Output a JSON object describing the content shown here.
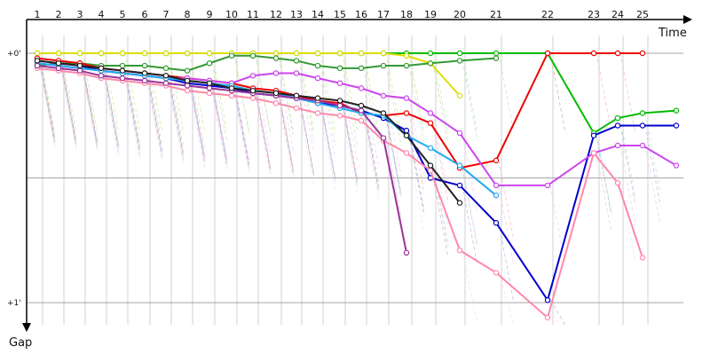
{
  "chart_data": {
    "type": "line",
    "xlabel": "Time",
    "ylabel": "Gap",
    "laps": [
      "1",
      "2",
      "3",
      "4",
      "5",
      "6",
      "7",
      "8",
      "9",
      "10",
      "11",
      "12",
      "13",
      "14",
      "15",
      "16",
      "17",
      "18",
      "19",
      "20",
      "21",
      "22",
      "23",
      "24",
      "25"
    ],
    "y_ticks": [
      {
        "value": 0,
        "label": "+0'"
      },
      {
        "value": 1,
        "label": "+1'"
      }
    ],
    "ylim": [
      0,
      1.1
    ],
    "grid": true,
    "series": [
      {
        "color": "#00bb00",
        "x": [
          1,
          2,
          3,
          4,
          5,
          6,
          7,
          8,
          9,
          10,
          11,
          12,
          13,
          14,
          15,
          16,
          17,
          18,
          19,
          20,
          21,
          22,
          23,
          24,
          25,
          26
        ],
        "y": [
          0.0,
          0.0,
          0.0,
          0.0,
          0.0,
          0.0,
          0.0,
          0.0,
          0.0,
          0.0,
          0.0,
          0.0,
          0.0,
          0.0,
          0.0,
          0.0,
          0.0,
          0.0,
          0.0,
          0.0,
          0.0,
          0.0,
          0.32,
          0.26,
          0.24,
          0.23
        ]
      },
      {
        "color": "#dddd00",
        "x": [
          1,
          2,
          3,
          4,
          5,
          6,
          7,
          8,
          9,
          10,
          11,
          12,
          13,
          14,
          15,
          16,
          17,
          18,
          19,
          20
        ],
        "y": [
          0.0,
          0.0,
          0.0,
          0.0,
          0.0,
          0.0,
          0.0,
          0.0,
          0.0,
          0.0,
          0.0,
          0.0,
          0.0,
          0.0,
          0.0,
          0.0,
          0.0,
          0.01,
          0.04,
          0.17
        ]
      },
      {
        "color": "#339933",
        "x": [
          1,
          2,
          3,
          4,
          5,
          6,
          7,
          8,
          9,
          10,
          11,
          12,
          13,
          14,
          15,
          16,
          17,
          18,
          19,
          20,
          21
        ],
        "y": [
          0.05,
          0.04,
          0.04,
          0.05,
          0.05,
          0.05,
          0.06,
          0.07,
          0.04,
          0.01,
          0.01,
          0.02,
          0.03,
          0.05,
          0.06,
          0.06,
          0.05,
          0.05,
          0.04,
          0.03,
          0.02
        ]
      },
      {
        "color": "#ee0000",
        "x": [
          1,
          2,
          3,
          4,
          5,
          6,
          7,
          8,
          9,
          10,
          11,
          12,
          13,
          14,
          15,
          16,
          17,
          18,
          19,
          20,
          21,
          22,
          23,
          24,
          25
        ],
        "y": [
          0.02,
          0.03,
          0.04,
          0.06,
          0.07,
          0.08,
          0.09,
          0.1,
          0.11,
          0.12,
          0.14,
          0.15,
          0.17,
          0.19,
          0.2,
          0.24,
          0.25,
          0.24,
          0.28,
          0.46,
          0.43,
          0.0,
          0.0,
          0.0,
          0.0
        ]
      },
      {
        "color": "#0000cc",
        "x": [
          1,
          2,
          3,
          4,
          5,
          6,
          7,
          8,
          9,
          10,
          11,
          12,
          13,
          14,
          15,
          16,
          17,
          18,
          19,
          20,
          21,
          22,
          23,
          24,
          25,
          26
        ],
        "y": [
          0.03,
          0.04,
          0.05,
          0.07,
          0.08,
          0.09,
          0.1,
          0.12,
          0.13,
          0.14,
          0.16,
          0.17,
          0.18,
          0.2,
          0.21,
          0.23,
          0.26,
          0.31,
          0.5,
          0.53,
          0.68,
          0.99,
          0.33,
          0.29,
          0.29,
          0.29
        ]
      },
      {
        "color": "#cc44ee",
        "x": [
          1,
          2,
          3,
          4,
          5,
          6,
          7,
          8,
          9,
          10,
          11,
          12,
          13,
          14,
          15,
          16,
          17,
          18,
          19,
          20,
          21,
          22,
          23,
          24,
          25,
          26
        ],
        "y": [
          0.04,
          0.05,
          0.06,
          0.07,
          0.08,
          0.09,
          0.1,
          0.1,
          0.11,
          0.12,
          0.09,
          0.08,
          0.08,
          0.1,
          0.12,
          0.14,
          0.17,
          0.18,
          0.24,
          0.32,
          0.53,
          0.53,
          0.4,
          0.37,
          0.37,
          0.45
        ]
      },
      {
        "color": "#ff88aa",
        "x": [
          1,
          2,
          3,
          4,
          5,
          6,
          7,
          8,
          9,
          10,
          11,
          12,
          13,
          14,
          15,
          16,
          17,
          18,
          19,
          20,
          21,
          22,
          23,
          24,
          25
        ],
        "y": [
          0.06,
          0.07,
          0.08,
          0.1,
          0.11,
          0.12,
          0.13,
          0.15,
          0.16,
          0.17,
          0.18,
          0.2,
          0.22,
          0.24,
          0.25,
          0.27,
          0.35,
          0.4,
          0.47,
          0.79,
          0.88,
          1.06,
          0.4,
          0.52,
          0.82
        ]
      },
      {
        "color": "#22aaee",
        "x": [
          1,
          2,
          3,
          4,
          5,
          6,
          7,
          8,
          9,
          10,
          11,
          12,
          13,
          14,
          15,
          16,
          17,
          18,
          19,
          20,
          21
        ],
        "y": [
          0.04,
          0.05,
          0.06,
          0.07,
          0.08,
          0.09,
          0.1,
          0.11,
          0.12,
          0.13,
          0.15,
          0.16,
          0.18,
          0.2,
          0.22,
          0.24,
          0.25,
          0.33,
          0.38,
          0.45,
          0.57
        ]
      },
      {
        "color": "#993399",
        "x": [
          1,
          2,
          3,
          4,
          5,
          6,
          7,
          8,
          9,
          10,
          11,
          12,
          13,
          14,
          15,
          16,
          17,
          18
        ],
        "y": [
          0.05,
          0.06,
          0.07,
          0.09,
          0.1,
          0.11,
          0.12,
          0.13,
          0.14,
          0.15,
          0.16,
          0.17,
          0.18,
          0.19,
          0.21,
          0.23,
          0.34,
          0.8
        ]
      },
      {
        "color": "#222222",
        "x": [
          1,
          2,
          3,
          4,
          5,
          6,
          7,
          8,
          9,
          10,
          11,
          12,
          13,
          14,
          15,
          16,
          17,
          18,
          19,
          20
        ],
        "y": [
          0.03,
          0.04,
          0.05,
          0.06,
          0.07,
          0.08,
          0.09,
          0.11,
          0.12,
          0.14,
          0.15,
          0.16,
          0.17,
          0.18,
          0.19,
          0.21,
          0.24,
          0.33,
          0.45,
          0.6
        ]
      }
    ]
  }
}
